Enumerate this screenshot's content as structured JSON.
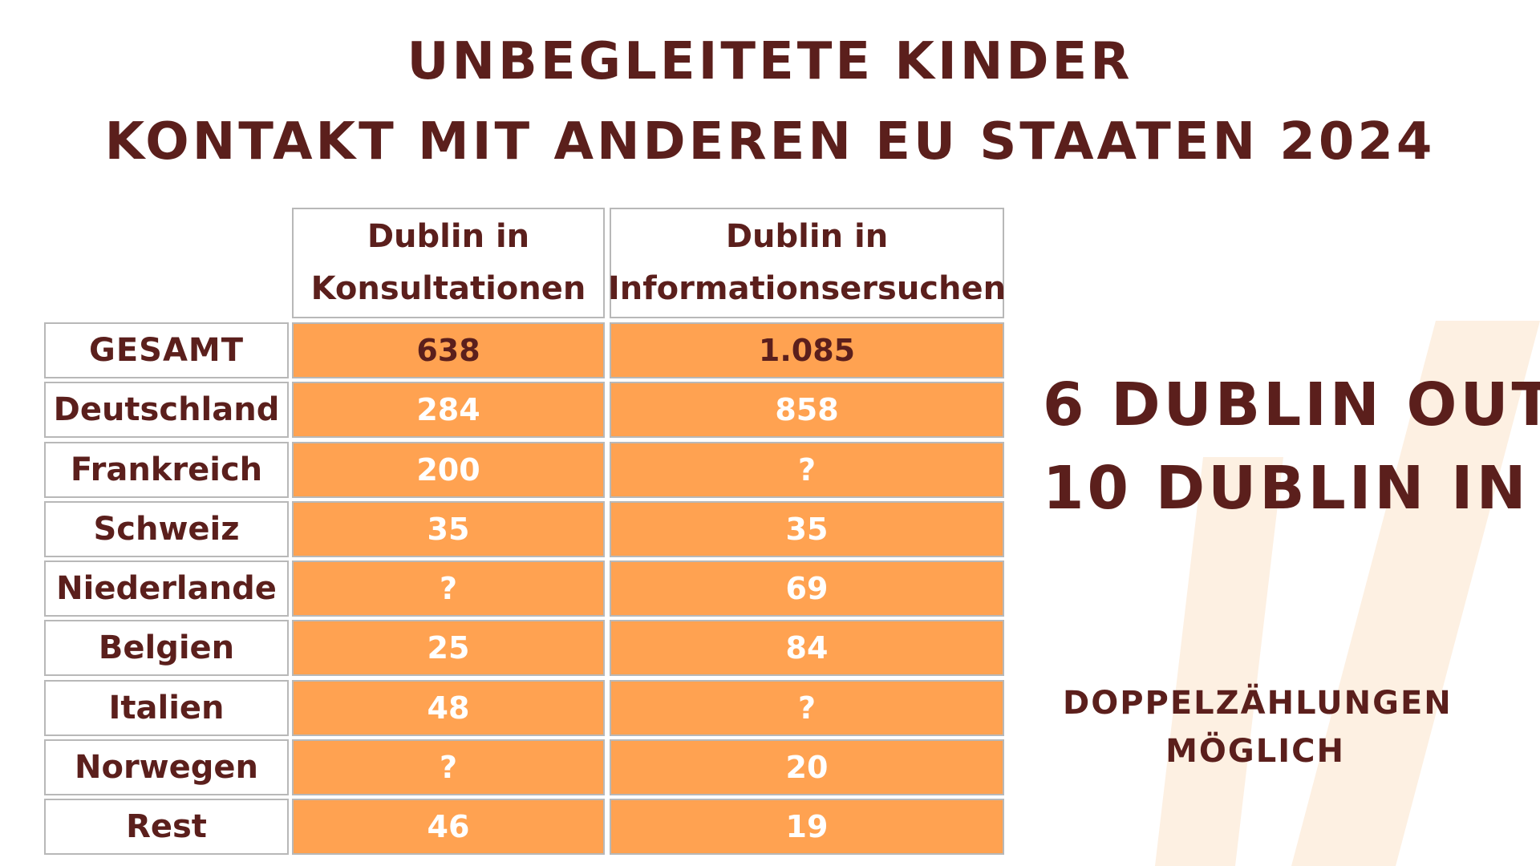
{
  "title": {
    "line1": "UNBEGLEITETE KINDER",
    "line2": "KONTAKT MIT ANDEREN EU STAATEN 2024"
  },
  "colors": {
    "text": "#5b1f1c",
    "cell_fill": "#ffa251",
    "border": "#b8b8b8",
    "watermark": "#fdf0e2"
  },
  "chart_data": {
    "type": "table",
    "columns": [
      {
        "line1": "Dublin in",
        "line2": "Konsultationen"
      },
      {
        "line1": "Dublin in",
        "line2": "Informationsersuchen"
      }
    ],
    "rows": [
      {
        "label": "GESAMT",
        "values": [
          "638",
          "1.085"
        ]
      },
      {
        "label": "Deutschland",
        "values": [
          "284",
          "858"
        ]
      },
      {
        "label": "Frankreich",
        "values": [
          "200",
          "?"
        ]
      },
      {
        "label": "Schweiz",
        "values": [
          "35",
          "35"
        ]
      },
      {
        "label": "Niederlande",
        "values": [
          "?",
          "69"
        ]
      },
      {
        "label": "Belgien",
        "values": [
          "25",
          "84"
        ]
      },
      {
        "label": "Italien",
        "values": [
          "48",
          "?"
        ]
      },
      {
        "label": "Norwegen",
        "values": [
          "?",
          "20"
        ]
      },
      {
        "label": "Rest",
        "values": [
          "46",
          "19"
        ]
      }
    ]
  },
  "summary": {
    "line1": "6 DUBLIN OUT",
    "line2": "10 DUBLIN IN"
  },
  "note": {
    "line1": "DOPPELZÄHLUNGEN",
    "line2": "MÖGLICH"
  }
}
